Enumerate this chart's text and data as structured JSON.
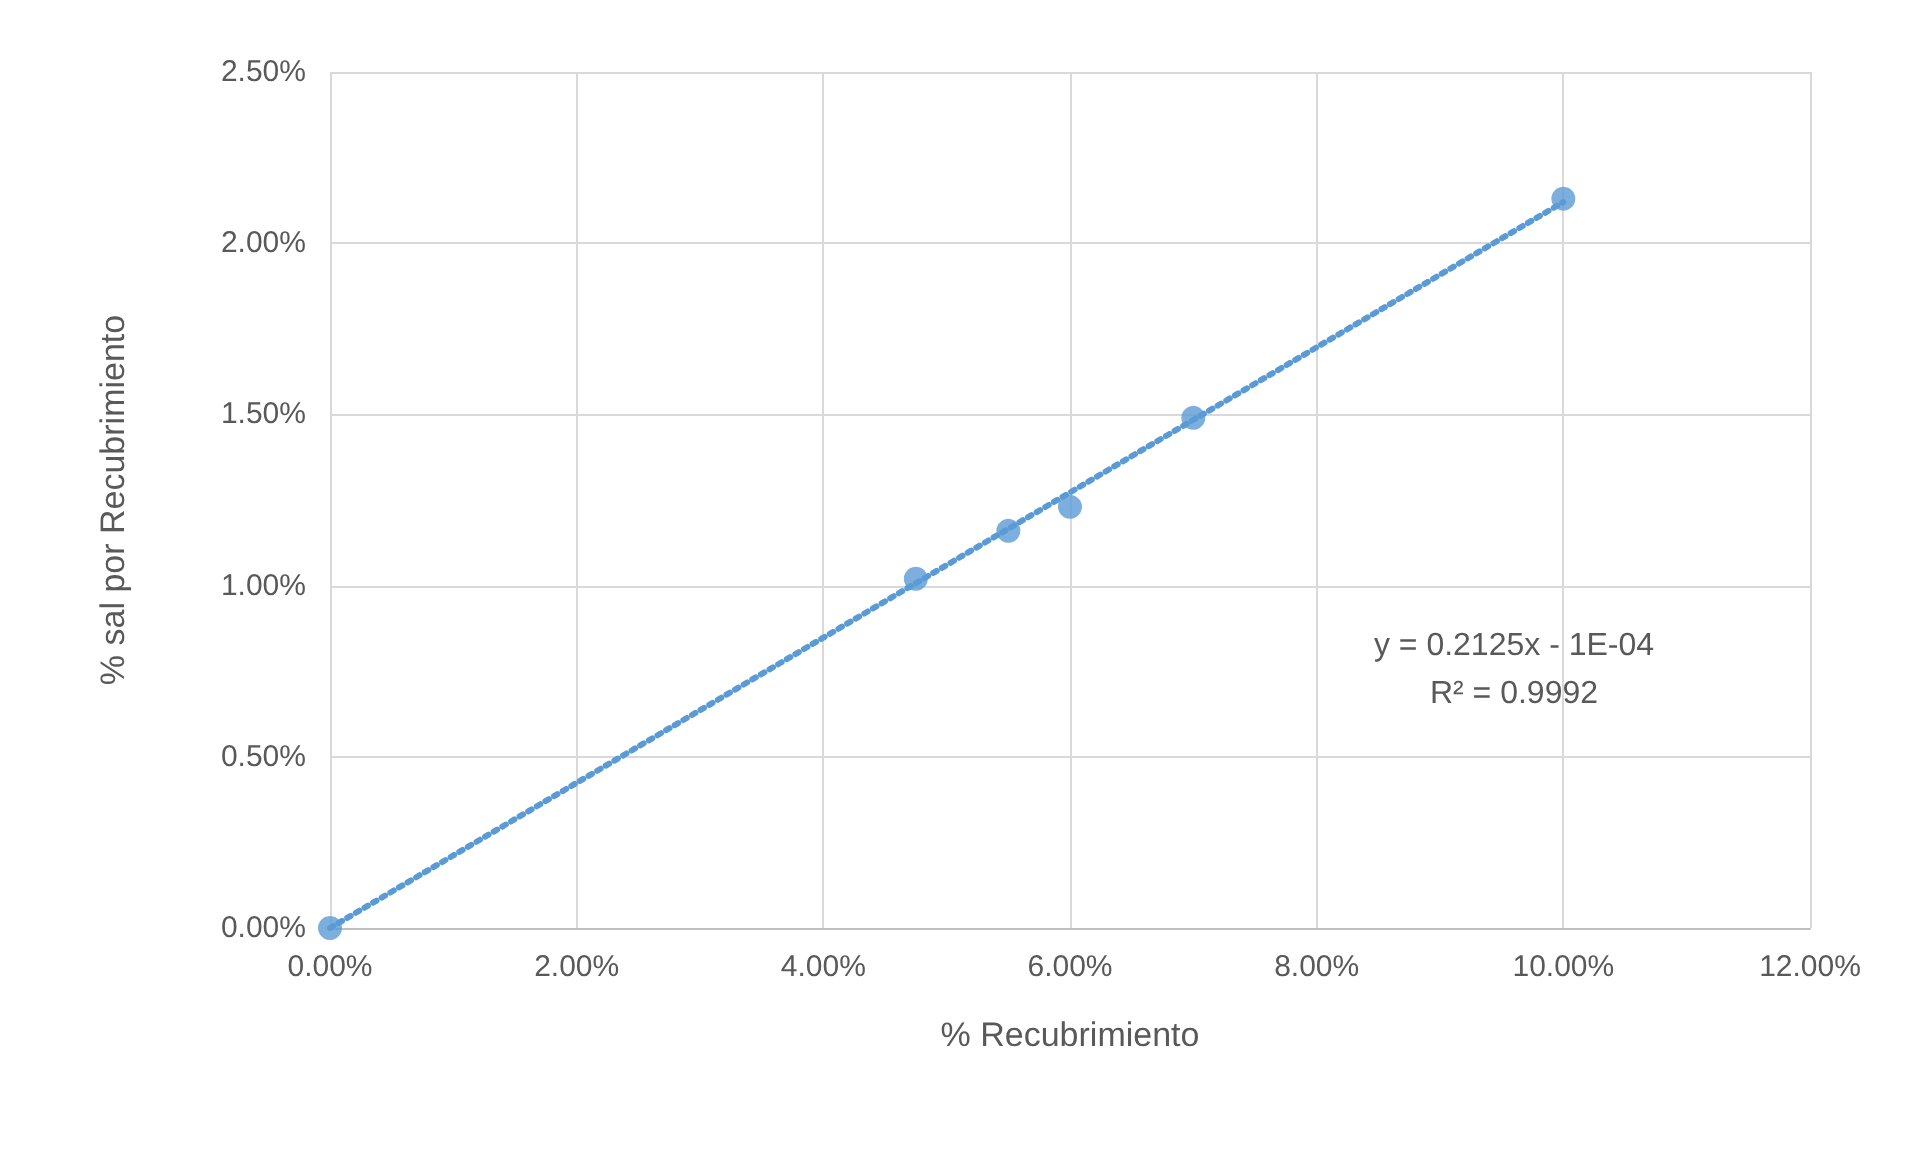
{
  "chart_data": {
    "type": "scatter",
    "xlabel": "% Recubrimiento",
    "ylabel": "% sal por Recubrimiento",
    "xlim": [
      0,
      12
    ],
    "ylim": [
      0,
      2.5
    ],
    "xticks": [
      {
        "value": 0,
        "label": "0.00%"
      },
      {
        "value": 2,
        "label": "2.00%"
      },
      {
        "value": 4,
        "label": "4.00%"
      },
      {
        "value": 6,
        "label": "6.00%"
      },
      {
        "value": 8,
        "label": "8.00%"
      },
      {
        "value": 10,
        "label": "10.00%"
      },
      {
        "value": 12,
        "label": "12.00%"
      }
    ],
    "yticks": [
      {
        "value": 0,
        "label": "0.00%"
      },
      {
        "value": 0.5,
        "label": "0.50%"
      },
      {
        "value": 1,
        "label": "1.00%"
      },
      {
        "value": 1.5,
        "label": "1.50%"
      },
      {
        "value": 2,
        "label": "2.00%"
      },
      {
        "value": 2.5,
        "label": "2.50%"
      }
    ],
    "grid": true,
    "marker": "circle",
    "series": [
      {
        "color": "#5b9bd5",
        "x": [
          0,
          4.75,
          5.5,
          6,
          7,
          10
        ],
        "values": [
          0,
          1.02,
          1.16,
          1.23,
          1.49,
          2.13
        ]
      },
      {
        "type": "line",
        "color": "#5b9bd5",
        "line_style": "dotted",
        "marker": "none",
        "x": [
          0,
          10
        ],
        "values": [
          0,
          2.12
        ]
      }
    ],
    "annotations": [
      "y = 0.2125x - 1E-04",
      "R² = 0.9992"
    ]
  }
}
